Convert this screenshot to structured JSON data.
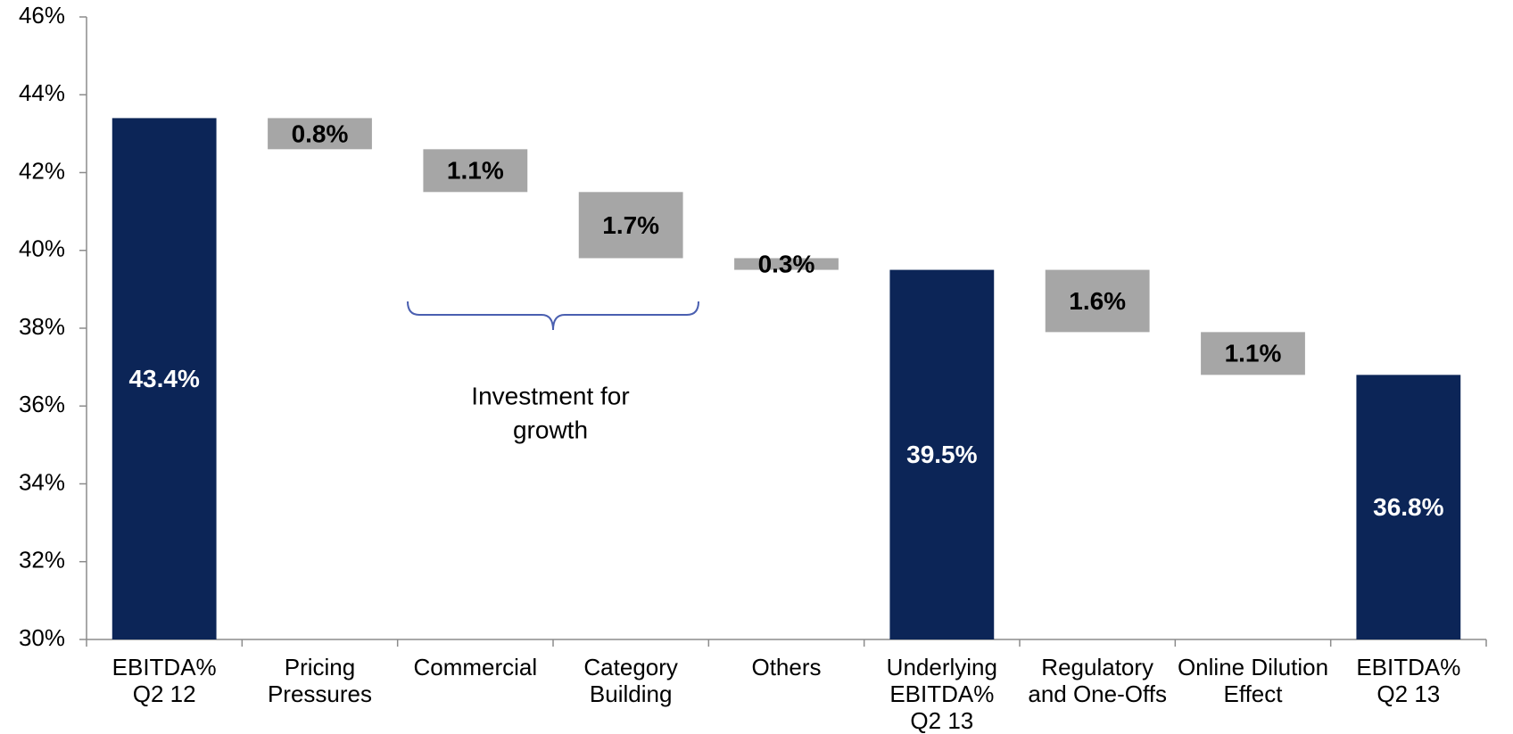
{
  "chart_data": {
    "type": "waterfall",
    "categories": [
      [
        "EBITDA%",
        "Q2 12"
      ],
      [
        "Pricing",
        "Pressures"
      ],
      [
        "Commercial"
      ],
      [
        "Category",
        "Building"
      ],
      [
        "Others"
      ],
      [
        "Underlying",
        "EBITDA%",
        "Q2 13"
      ],
      [
        "Regulatory",
        "and One-Offs"
      ],
      [
        "Online Dilution",
        "Effect"
      ],
      [
        "EBITDA%",
        "Q2 13"
      ]
    ],
    "values": [
      43.4,
      0.8,
      1.1,
      1.7,
      0.3,
      39.5,
      1.6,
      1.1,
      36.8
    ],
    "value_labels": [
      "43.4%",
      "0.8%",
      "1.1%",
      "1.7%",
      "0.3%",
      "39.5%",
      "1.6%",
      "1.1%",
      "36.8%"
    ],
    "kinds": [
      "total",
      "decrease",
      "decrease",
      "decrease",
      "decrease",
      "total",
      "decrease",
      "decrease",
      "total"
    ],
    "total_color": "#0c2557",
    "decrease_color": "#a6a6a6",
    "ylim": [
      30,
      46
    ],
    "yticks": [
      {
        "value": 30,
        "label": "30%"
      },
      {
        "value": 32,
        "label": "32%"
      },
      {
        "value": 34,
        "label": "34%"
      },
      {
        "value": 36,
        "label": "36%"
      },
      {
        "value": 38,
        "label": "38%"
      },
      {
        "value": 40,
        "label": "40%"
      },
      {
        "value": 42,
        "label": "42%"
      },
      {
        "value": 44,
        "label": "44%"
      },
      {
        "value": 46,
        "label": "46%"
      }
    ],
    "annotation": [
      "Investment for",
      "growth"
    ]
  }
}
